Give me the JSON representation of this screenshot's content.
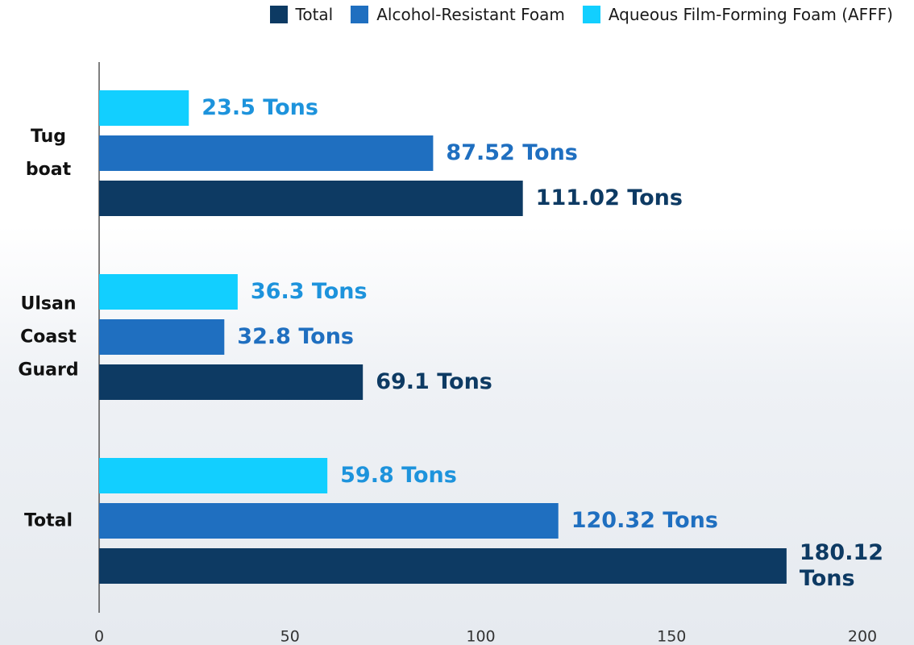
{
  "chart_data": {
    "type": "bar",
    "orientation": "horizontal",
    "categories": [
      "Tug boat",
      "Ulsan Coast Guard",
      "Total"
    ],
    "series": [
      {
        "name": "Total",
        "color": "#0d3a63",
        "label_color": "#0d3a63",
        "values": [
          111.02,
          69.1,
          180.12
        ],
        "value_labels": [
          "111.02 Tons",
          "69.1 Tons",
          "180.12 Tons"
        ]
      },
      {
        "name": "Alcohol-Resistant Foam",
        "color": "#1f6fc0",
        "label_color": "#1f6fc0",
        "values": [
          87.52,
          32.8,
          120.32
        ],
        "value_labels": [
          "87.52 Tons",
          "32.8 Tons",
          "120.32 Tons"
        ]
      },
      {
        "name": "Aqueous Film-Forming Foam (AFFF)",
        "color": "#12cfff",
        "label_color": "#1d93dc",
        "values": [
          23.5,
          36.3,
          59.8
        ],
        "value_labels": [
          "23.5 Tons",
          "36.3 Tons",
          "59.8 Tons"
        ]
      }
    ],
    "xlim": [
      0,
      200
    ],
    "xticks": [
      0,
      50,
      100,
      150,
      200
    ],
    "grid": false
  }
}
